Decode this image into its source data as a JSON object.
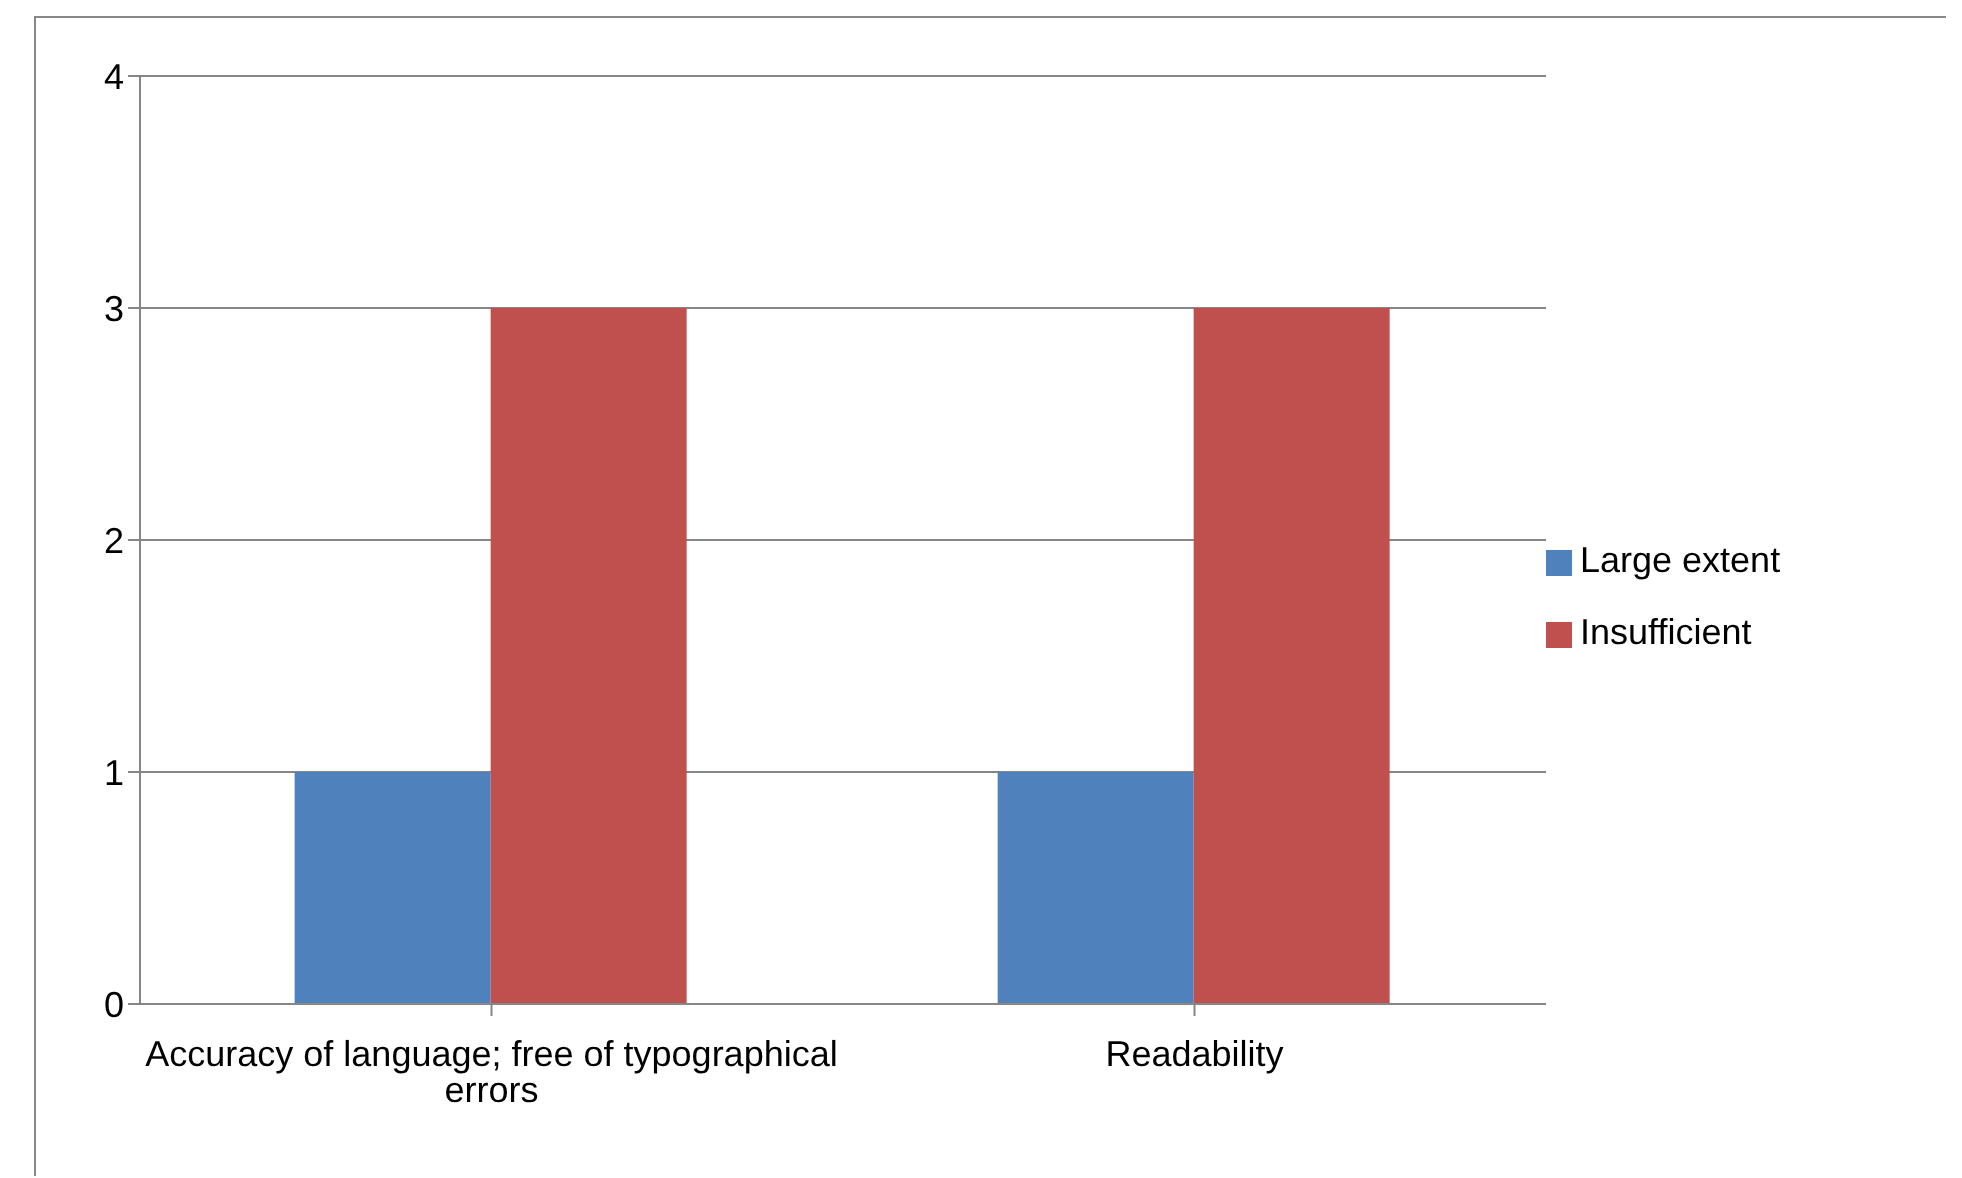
{
  "chart_data": {
    "type": "bar",
    "categories": [
      "Accuracy of language; free of typographical errors",
      "Readability"
    ],
    "series": [
      {
        "name": "Large extent",
        "color": "#4f81bd",
        "values": [
          1,
          1
        ]
      },
      {
        "name": "Insufficient",
        "color": "#c0504d",
        "values": [
          3,
          3
        ]
      }
    ],
    "ylim": [
      0,
      4
    ],
    "yticks": [
      0,
      1,
      2,
      3,
      4
    ],
    "grid": "y",
    "legend": "right"
  }
}
